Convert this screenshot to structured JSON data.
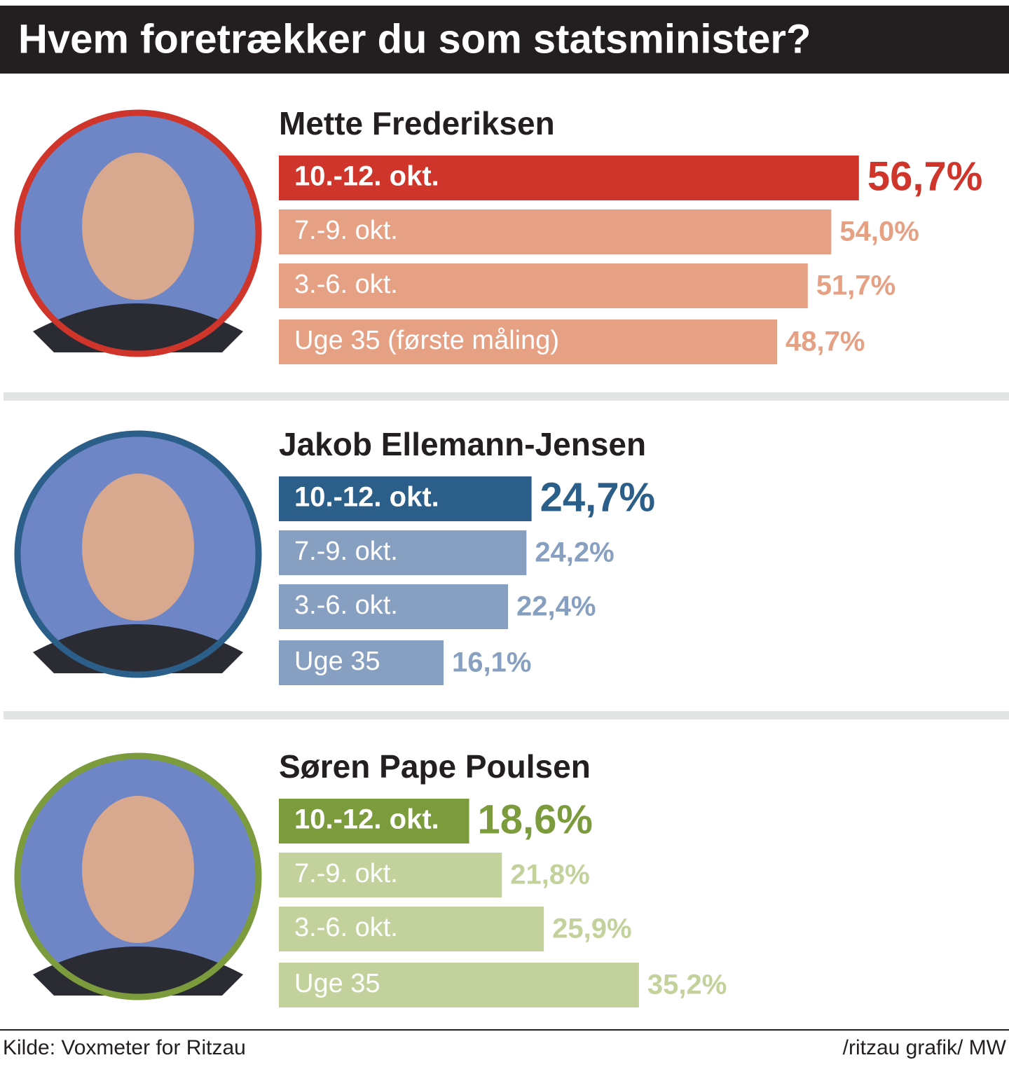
{
  "title": "Hvem foretrækker du som statsminister?",
  "chart_data": [
    {
      "type": "bar",
      "title": "Mette Frederiksen",
      "categories": [
        "10.-12. okt.",
        "7.-9. okt.",
        "3.-6. okt.",
        "Uge 35 (første måling)"
      ],
      "values": [
        56.7,
        54.0,
        51.7,
        48.7
      ],
      "value_labels": [
        "56,7%",
        "54,0%",
        "51,7%",
        "48,7%"
      ],
      "colors": [
        "#d0352b",
        "#e6a184",
        "#e6a184",
        "#e6a184"
      ]
    },
    {
      "type": "bar",
      "title": "Jakob Ellemann-Jensen",
      "categories": [
        "10.-12. okt.",
        "7.-9. okt.",
        "3.-6. okt.",
        "Uge 35"
      ],
      "values": [
        24.7,
        24.2,
        22.4,
        16.1
      ],
      "value_labels": [
        "24,7%",
        "24,2%",
        "22,4%",
        "16,1%"
      ],
      "colors": [
        "#2c5e8a",
        "#879fc0",
        "#879fc0",
        "#879fc0"
      ]
    },
    {
      "type": "bar",
      "title": "Søren Pape Poulsen",
      "categories": [
        "10.-12. okt.",
        "7.-9. okt.",
        "3.-6. okt.",
        "Uge 35"
      ],
      "values": [
        18.6,
        21.8,
        25.9,
        35.2
      ],
      "value_labels": [
        "18,6%",
        "21,8%",
        "25,9%",
        "35,2%"
      ],
      "colors": [
        "#7b9b3c",
        "#c3d29c",
        "#c3d29c",
        "#c3d29c"
      ]
    }
  ],
  "source": "Kilde: Voxmeter for Ritzau",
  "credit": "/ritzau grafik/ MW"
}
